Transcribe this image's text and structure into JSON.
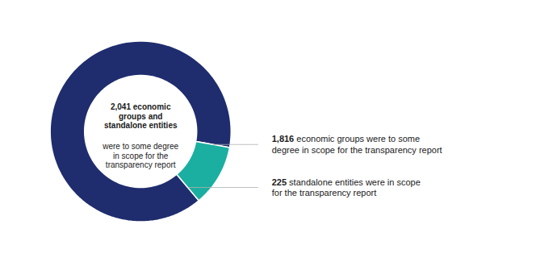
{
  "chart_data": {
    "type": "donut",
    "values": [
      1816,
      225
    ],
    "colors": [
      "#1f2d6e",
      "#1aafa0"
    ],
    "data_labels": true,
    "value_labels": [
      "1,816",
      "225"
    ],
    "annotations": [
      "2,041 economic\ngroups and\nstandalone entities",
      "were to some degree\nin scope for the\ntransparency report"
    ],
    "label_texts": [
      [
        "economic groups were to some",
        "degree in scope for the transparency report"
      ],
      [
        "standalone entities were in scope",
        "for the transparency report"
      ]
    ]
  }
}
